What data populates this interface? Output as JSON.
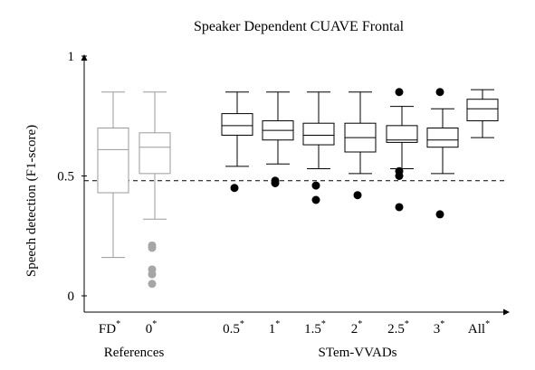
{
  "chart_data": {
    "type": "box",
    "title": "Speaker Dependent CUAVE Frontal",
    "ylabel": "Speech detection (F1-score)",
    "ylim": [
      0,
      1
    ],
    "yticks": [
      "0",
      "0.5",
      "1"
    ],
    "reference_line": 0.48,
    "groups": [
      {
        "name": "References",
        "categories": [
          "FD",
          "0"
        ]
      },
      {
        "name": "STem-VVADs",
        "categories": [
          "0.5",
          "1",
          "1.5",
          "2",
          "2.5",
          "3",
          "All"
        ]
      }
    ],
    "boxes": [
      {
        "label": "FD",
        "mark": "*",
        "group": "References",
        "color": "#9a9a9a",
        "whisker_low": 0.16,
        "q1": 0.43,
        "median": 0.61,
        "q3": 0.7,
        "whisker_high": 0.85,
        "outliers": []
      },
      {
        "label": "0",
        "mark": "*",
        "group": "References",
        "color": "#9a9a9a",
        "whisker_low": 0.32,
        "q1": 0.51,
        "median": 0.62,
        "q3": 0.68,
        "whisker_high": 0.85,
        "outliers": [
          0.21,
          0.2,
          0.11,
          0.09,
          0.05
        ]
      },
      {
        "label": "0.5",
        "mark": "*",
        "group": "STem-VVADs",
        "color": "#000000",
        "whisker_low": 0.54,
        "q1": 0.67,
        "median": 0.71,
        "q3": 0.76,
        "whisker_high": 0.85,
        "outliers": [
          0.45
        ]
      },
      {
        "label": "1",
        "mark": "*",
        "group": "STem-VVADs",
        "color": "#000000",
        "whisker_low": 0.55,
        "q1": 0.65,
        "median": 0.69,
        "q3": 0.73,
        "whisker_high": 0.85,
        "outliers": [
          0.48,
          0.47
        ]
      },
      {
        "label": "1.5",
        "mark": "*",
        "group": "STem-VVADs",
        "color": "#000000",
        "whisker_low": 0.53,
        "q1": 0.63,
        "median": 0.67,
        "q3": 0.72,
        "whisker_high": 0.85,
        "outliers": [
          0.46,
          0.4
        ]
      },
      {
        "label": "2",
        "mark": "*",
        "group": "STem-VVADs",
        "color": "#000000",
        "whisker_low": 0.51,
        "q1": 0.6,
        "median": 0.66,
        "q3": 0.72,
        "whisker_high": 0.85,
        "outliers": [
          0.42
        ]
      },
      {
        "label": "2.5",
        "mark": "*",
        "group": "STem-VVADs",
        "color": "#000000",
        "whisker_low": 0.53,
        "q1": 0.64,
        "median": 0.65,
        "q3": 0.71,
        "whisker_high": 0.79,
        "outliers": [
          0.85,
          0.52,
          0.5,
          0.37
        ]
      },
      {
        "label": "3",
        "mark": "*",
        "group": "STem-VVADs",
        "color": "#000000",
        "whisker_low": 0.51,
        "q1": 0.62,
        "median": 0.65,
        "q3": 0.7,
        "whisker_high": 0.78,
        "outliers": [
          0.85,
          0.34
        ]
      },
      {
        "label": "All",
        "mark": "*",
        "group": "STem-VVADs",
        "color": "#000000",
        "whisker_low": 0.66,
        "q1": 0.73,
        "median": 0.78,
        "q3": 0.82,
        "whisker_high": 0.86,
        "outliers": []
      }
    ]
  }
}
